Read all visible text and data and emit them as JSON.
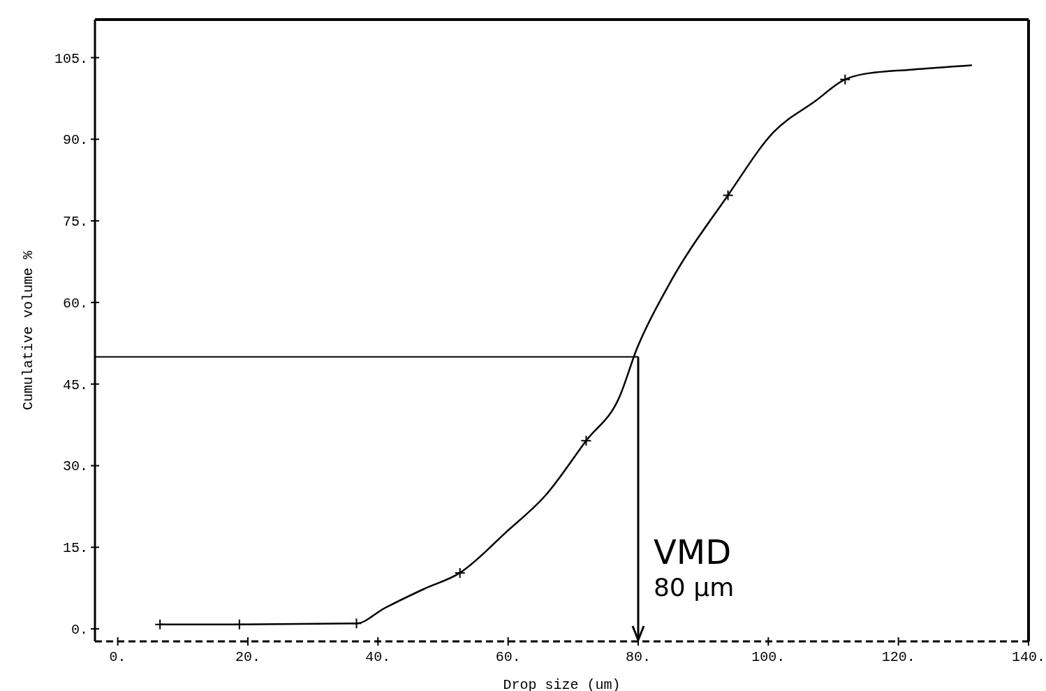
{
  "chart_data": {
    "type": "line",
    "xlabel": "Drop size (um)",
    "ylabel": "Cumulative volume %",
    "xlim": [
      -3.5,
      140
    ],
    "ylim": [
      -2.3,
      112
    ],
    "xticks": [
      {
        "value": 0,
        "label": "0."
      },
      {
        "value": 20,
        "label": "20."
      },
      {
        "value": 40,
        "label": "40."
      },
      {
        "value": 60,
        "label": "60."
      },
      {
        "value": 80,
        "label": "80."
      },
      {
        "value": 100,
        "label": "100."
      },
      {
        "value": 120,
        "label": "120."
      },
      {
        "value": 140,
        "label": "140."
      }
    ],
    "yticks": [
      {
        "value": 0,
        "label": "0."
      },
      {
        "value": 15,
        "label": "15."
      },
      {
        "value": 30,
        "label": "30."
      },
      {
        "value": 45,
        "label": "45."
      },
      {
        "value": 60,
        "label": "60."
      },
      {
        "value": 75,
        "label": "75."
      },
      {
        "value": 90,
        "label": "90."
      },
      {
        "value": 105,
        "label": "105."
      }
    ],
    "grid": false,
    "series": [
      {
        "color": "#000000",
        "marker": "none",
        "line_style": "solid",
        "x": [
          6.5,
          18.7,
          36.7,
          41,
          47,
          52.6,
          59.9,
          65.8,
          72,
          77.1,
          79.8,
          84.6,
          93.8,
          100.8,
          107.2,
          111.8,
          114.7,
          122,
          131.2
        ],
        "values": [
          0.8,
          0.8,
          1.0,
          3.8,
          7.3,
          10.3,
          18,
          24.6,
          34.6,
          42.6,
          51.5,
          63,
          79.7,
          91.3,
          97,
          101,
          102,
          102.8,
          103.6
        ]
      },
      {
        "type": "scatter",
        "color": "#000000",
        "marker": "cross",
        "x": [
          6.5,
          18.7,
          36.7,
          52.6,
          72,
          93.8,
          111.8
        ],
        "values": [
          0.8,
          0.8,
          1.0,
          10.3,
          34.6,
          79.7,
          101
        ]
      }
    ],
    "ref_lines": [
      {
        "axis": "y",
        "value": 50,
        "label": null,
        "color": "#000000"
      },
      {
        "axis": "x",
        "value": 80,
        "label": null,
        "color": "#000000"
      }
    ],
    "annotations": [
      {
        "text": "VMD",
        "x": 80,
        "y": 12
      },
      {
        "text": "80 µm",
        "x": 80,
        "y": 6
      }
    ]
  }
}
